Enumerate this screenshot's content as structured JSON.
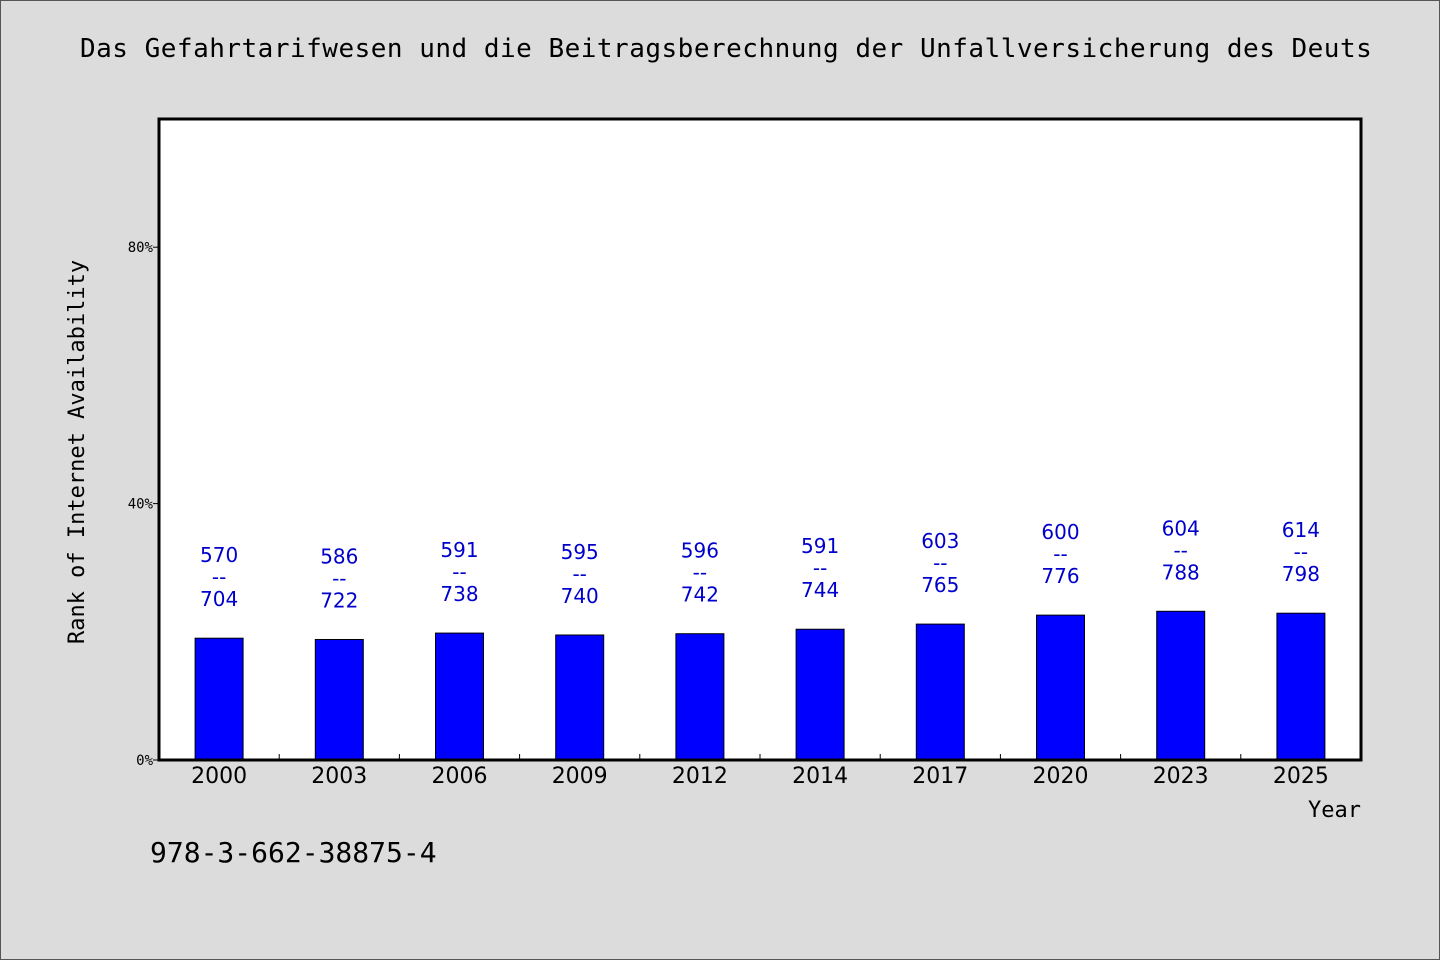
{
  "chart_data": {
    "type": "bar",
    "title": "Das Gefahrtarifwesen und die Beitragsberechnung der Unfallversicherung des Deuts",
    "xlabel": "Year",
    "ylabel": "Rank of Internet Availability",
    "categories": [
      "2000",
      "2003",
      "2006",
      "2009",
      "2012",
      "2014",
      "2017",
      "2020",
      "2023",
      "2025"
    ],
    "values": [
      19.0,
      18.8,
      19.8,
      19.5,
      19.7,
      20.4,
      21.2,
      22.6,
      23.2,
      22.9
    ],
    "data_labels": [
      {
        "top": "570",
        "sep": "--",
        "bottom": "704"
      },
      {
        "top": "586",
        "sep": "--",
        "bottom": "722"
      },
      {
        "top": "591",
        "sep": "--",
        "bottom": "738"
      },
      {
        "top": "595",
        "sep": "--",
        "bottom": "740"
      },
      {
        "top": "596",
        "sep": "--",
        "bottom": "742"
      },
      {
        "top": "591",
        "sep": "--",
        "bottom": "744"
      },
      {
        "top": "603",
        "sep": "--",
        "bottom": "765"
      },
      {
        "top": "600",
        "sep": "--",
        "bottom": "776"
      },
      {
        "top": "604",
        "sep": "--",
        "bottom": "788"
      },
      {
        "top": "614",
        "sep": "--",
        "bottom": "798"
      }
    ],
    "yticks": [
      0,
      40,
      80
    ],
    "ytick_labels": [
      "0%",
      "40%",
      "80%"
    ],
    "ylim": [
      0,
      100
    ],
    "grid": false,
    "colors": {
      "bar": "#0000ff",
      "label": "#0000cc"
    }
  },
  "footer": {
    "note": "978-3-662-38875-4"
  }
}
